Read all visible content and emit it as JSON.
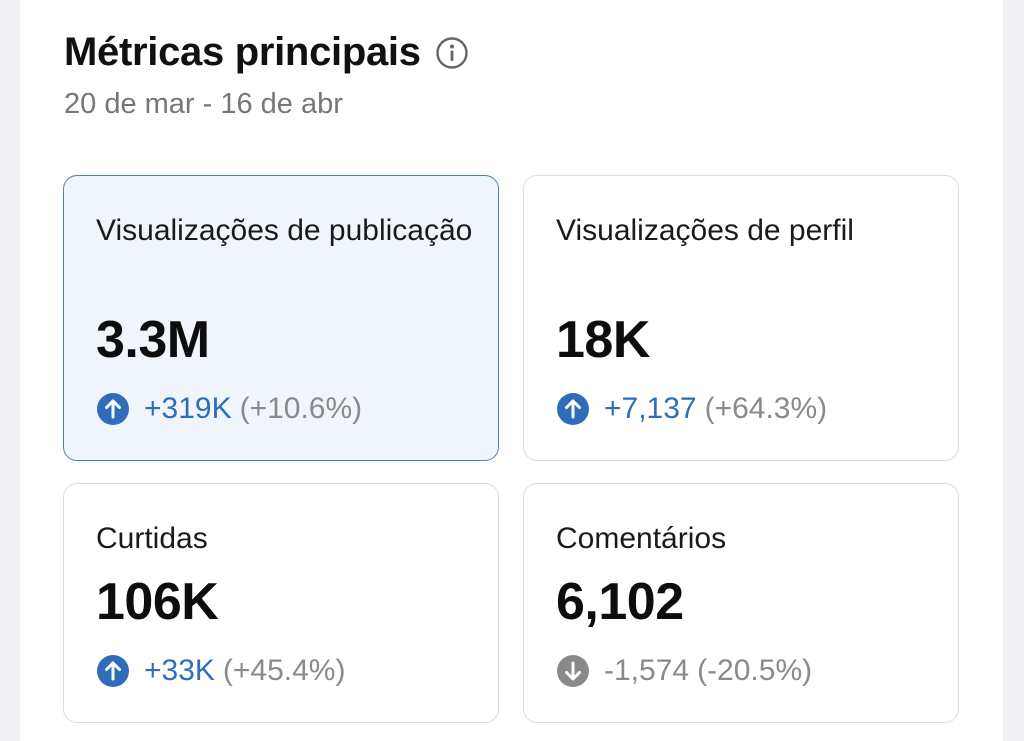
{
  "header": {
    "title": "Métricas principais",
    "date_range": "20 de mar - 16 de abr"
  },
  "metrics": [
    {
      "label": "Visualizações de publicação",
      "value": "3.3M",
      "delta": "+319K",
      "percent": "(+10.6%)",
      "trend": "up",
      "selected": true
    },
    {
      "label": "Visualizações de perfil",
      "value": "18K",
      "delta": "+7,137",
      "percent": "(+64.3%)",
      "trend": "up",
      "selected": false
    },
    {
      "label": "Curtidas",
      "value": "106K",
      "delta": "+33K",
      "percent": "(+45.4%)",
      "trend": "up",
      "selected": false
    },
    {
      "label": "Comentários",
      "value": "6,102",
      "delta": "-1,574",
      "percent": "(-20.5%)",
      "trend": "down",
      "selected": false
    }
  ],
  "colors": {
    "up_icon": "#2f6dbb",
    "down_icon": "#8a8a8a",
    "selected_border": "#4f7fc2",
    "selected_bg": "#f0f5fb"
  }
}
